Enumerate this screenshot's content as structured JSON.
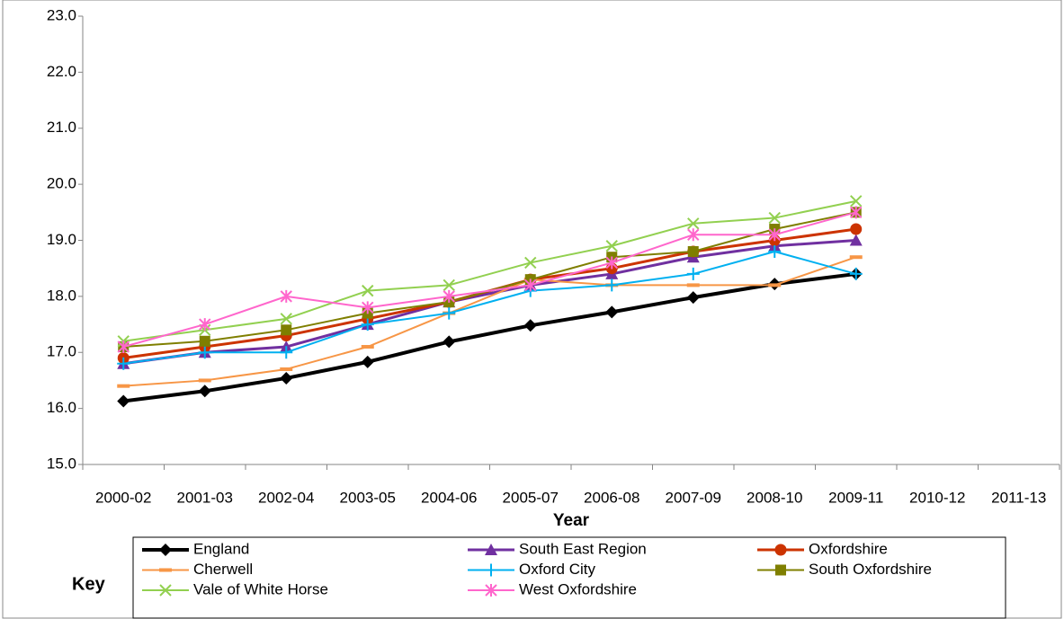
{
  "chart_data": {
    "type": "line",
    "x_label": "Year",
    "legend_title": "Key",
    "legend": "bottom",
    "grid": false,
    "categories": [
      "2000-02",
      "2001-03",
      "2002-04",
      "2003-05",
      "2004-06",
      "2005-07",
      "2006-08",
      "2007-09",
      "2008-10",
      "2009-11",
      "2010-12",
      "2011-13"
    ],
    "ylim": [
      15,
      23
    ],
    "yticks": [
      {
        "value": 15,
        "label": "15.0"
      },
      {
        "value": 16,
        "label": "16.0"
      },
      {
        "value": 17,
        "label": "17.0"
      },
      {
        "value": 18,
        "label": "18.0"
      },
      {
        "value": 19,
        "label": "19.0"
      },
      {
        "value": 20,
        "label": "20.0"
      },
      {
        "value": 21,
        "label": "21.0"
      },
      {
        "value": 22,
        "label": "22.0"
      },
      {
        "value": 23,
        "label": "23.0"
      }
    ],
    "series": [
      {
        "name": "England",
        "color": "#000000",
        "marker": "diamond",
        "line_width": 4,
        "values": [
          16.13,
          16.31,
          16.54,
          16.83,
          17.19,
          17.48,
          17.72,
          17.98,
          18.22,
          18.4,
          null,
          null
        ]
      },
      {
        "name": "South East Region",
        "color": "#7030a0",
        "marker": "triangle",
        "line_width": 3,
        "values": [
          16.8,
          17.0,
          17.1,
          17.5,
          17.9,
          18.2,
          18.4,
          18.7,
          18.9,
          19.0,
          null,
          null
        ]
      },
      {
        "name": "Oxfordshire",
        "color": "#cc3300",
        "marker": "circle",
        "line_width": 3,
        "values": [
          16.9,
          17.1,
          17.3,
          17.6,
          17.9,
          18.3,
          18.5,
          18.8,
          19.0,
          19.2,
          null,
          null
        ]
      },
      {
        "name": "Cherwell",
        "color": "#f79646",
        "marker": "dash",
        "line_width": 2,
        "values": [
          16.4,
          16.5,
          16.7,
          17.1,
          17.7,
          18.3,
          18.2,
          18.2,
          18.2,
          18.7,
          null,
          null
        ]
      },
      {
        "name": "Oxford City",
        "color": "#00b0f0",
        "marker": "plus",
        "line_width": 2,
        "values": [
          16.8,
          17.0,
          17.0,
          17.5,
          17.7,
          18.1,
          18.2,
          18.4,
          18.8,
          18.4,
          null,
          null
        ]
      },
      {
        "name": "South Oxfordshire",
        "color": "#7f7f00",
        "marker": "square",
        "line_width": 2,
        "values": [
          17.1,
          17.2,
          17.4,
          17.7,
          17.9,
          18.3,
          18.7,
          18.8,
          19.2,
          19.5,
          null,
          null
        ]
      },
      {
        "name": "Vale of White Horse",
        "color": "#92d050",
        "marker": "x",
        "line_width": 2,
        "values": [
          17.2,
          17.4,
          17.6,
          18.1,
          18.2,
          18.6,
          18.9,
          19.3,
          19.4,
          19.7,
          null,
          null
        ]
      },
      {
        "name": "West Oxfordshire",
        "color": "#ff66cc",
        "marker": "star",
        "line_width": 2,
        "values": [
          17.1,
          17.5,
          18.0,
          17.8,
          18.0,
          18.2,
          18.6,
          19.1,
          19.1,
          19.5,
          null,
          null
        ]
      }
    ]
  }
}
